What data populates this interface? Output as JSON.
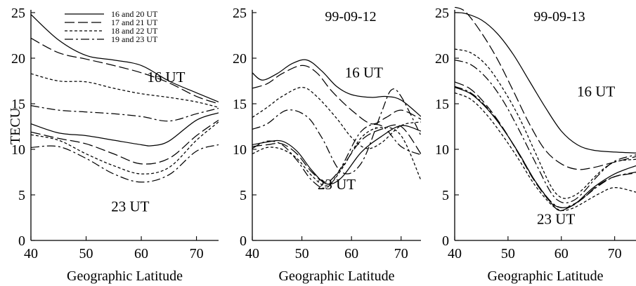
{
  "chart_data": [
    {
      "type": "line",
      "title": "",
      "xlabel": "Geographic Latitude",
      "ylabel": "TECU",
      "xlim": [
        40,
        74
      ],
      "ylim": [
        0,
        25
      ],
      "xticks": [
        40,
        50,
        60,
        70
      ],
      "yticks": [
        0,
        5,
        10,
        15,
        20,
        25
      ],
      "legend": [
        {
          "label": "16 and 20 UT",
          "style": "solid"
        },
        {
          "label": "17 and 21 UT",
          "style": "longdash"
        },
        {
          "label": "18 and 22 UT",
          "style": "shortdash"
        },
        {
          "label": "19 and 23 UT",
          "style": "dashdot"
        }
      ],
      "annotations": [
        {
          "text": "16 UT",
          "x": 64.5,
          "y": 17.4
        },
        {
          "text": "23 UT",
          "x": 58,
          "y": 3.2
        }
      ],
      "series": [
        {
          "style": "solid",
          "x": [
            40,
            45,
            50,
            55,
            60,
            65,
            70,
            74
          ],
          "y": [
            24.8,
            22.0,
            20.3,
            19.8,
            19.2,
            17.5,
            16.2,
            15.2
          ]
        },
        {
          "style": "longdash",
          "x": [
            40,
            45,
            50,
            55,
            60,
            65,
            70,
            74
          ],
          "y": [
            22.2,
            20.6,
            19.9,
            19.2,
            18.4,
            17.3,
            15.8,
            15.0
          ]
        },
        {
          "style": "shortdash",
          "x": [
            40,
            45,
            50,
            55,
            60,
            65,
            70,
            74
          ],
          "y": [
            18.3,
            17.5,
            17.4,
            16.7,
            16.1,
            15.7,
            15.2,
            14.6
          ]
        },
        {
          "style": "dashdot",
          "x": [
            40,
            45,
            50,
            55,
            60,
            65,
            70,
            74
          ],
          "y": [
            14.8,
            14.3,
            14.1,
            13.9,
            13.6,
            13.1,
            13.9,
            14.5
          ]
        },
        {
          "style": "solid",
          "x": [
            40,
            45,
            50,
            55,
            60,
            62,
            65,
            70,
            74
          ],
          "y": [
            12.8,
            11.8,
            11.5,
            11.0,
            10.5,
            10.4,
            10.9,
            13.2,
            14.0
          ]
        },
        {
          "style": "longdash",
          "x": [
            40,
            45,
            50,
            55,
            60,
            65,
            70,
            74
          ],
          "y": [
            11.9,
            11.2,
            10.6,
            9.5,
            8.4,
            9.0,
            11.5,
            13.2
          ]
        },
        {
          "style": "shortdash",
          "x": [
            40,
            45,
            50,
            55,
            60,
            65,
            70,
            74
          ],
          "y": [
            11.6,
            11.0,
            9.5,
            8.2,
            7.3,
            8.0,
            11.0,
            13.0
          ]
        },
        {
          "style": "dashdot",
          "x": [
            40,
            45,
            50,
            55,
            60,
            65,
            70,
            74
          ],
          "y": [
            10.2,
            10.3,
            9.0,
            7.3,
            6.4,
            7.2,
            9.8,
            10.5
          ]
        }
      ]
    },
    {
      "type": "line",
      "title": "99-09-12",
      "xlabel": "Geographic Latitude",
      "ylabel": "",
      "xlim": [
        40,
        74
      ],
      "ylim": [
        0,
        25
      ],
      "xticks": [
        40,
        50,
        60,
        70
      ],
      "yticks": [
        0,
        5,
        10,
        15,
        20,
        25
      ],
      "annotations": [
        {
          "text": "16 UT",
          "x": 62.5,
          "y": 17.9
        },
        {
          "text": "23 UT",
          "x": 57,
          "y": 5.6
        }
      ],
      "series": [
        {
          "style": "solid",
          "x": [
            40,
            42,
            45,
            48,
            51,
            54,
            57,
            60,
            64,
            67,
            70,
            74
          ],
          "y": [
            18.4,
            17.6,
            18.3,
            19.4,
            19.8,
            18.6,
            16.9,
            16.0,
            15.7,
            15.8,
            15.4,
            13.6
          ]
        },
        {
          "style": "longdash",
          "x": [
            40,
            43,
            46,
            50,
            53,
            56,
            60,
            64,
            67,
            70,
            74
          ],
          "y": [
            16.7,
            17.2,
            18.3,
            19.2,
            18.4,
            16.4,
            14.3,
            12.8,
            13.5,
            14.3,
            13.3
          ]
        },
        {
          "style": "shortdash",
          "x": [
            40,
            43,
            46,
            50,
            53,
            57,
            60,
            63,
            66,
            70,
            74
          ],
          "y": [
            13.5,
            14.6,
            15.8,
            16.8,
            15.8,
            13.4,
            11.3,
            10.1,
            10.7,
            12.6,
            13.0
          ]
        },
        {
          "style": "dashdot",
          "x": [
            40,
            43,
            47,
            51,
            54,
            58,
            62,
            66,
            68,
            70,
            74
          ],
          "y": [
            12.2,
            12.8,
            14.3,
            13.6,
            11.3,
            7.5,
            8.5,
            14.0,
            16.5,
            15.8,
            11.5
          ]
        },
        {
          "style": "solid",
          "x": [
            40,
            43,
            46,
            49,
            52,
            55,
            58,
            62,
            66,
            70,
            74
          ],
          "y": [
            10.5,
            10.8,
            10.9,
            9.8,
            7.7,
            6.2,
            6.9,
            9.7,
            11.4,
            12.6,
            12.0
          ]
        },
        {
          "style": "longdash",
          "x": [
            40,
            43,
            46,
            49,
            52,
            55,
            58,
            62,
            66,
            70,
            74
          ],
          "y": [
            10.3,
            10.5,
            10.6,
            9.5,
            7.5,
            6.4,
            8.0,
            11.0,
            12.2,
            12.5,
            9.5
          ]
        },
        {
          "style": "shortdash",
          "x": [
            40,
            43,
            46,
            49,
            52,
            55,
            58,
            62,
            66,
            70,
            74
          ],
          "y": [
            9.5,
            10.2,
            10.0,
            9.0,
            7.1,
            6.0,
            7.8,
            11.3,
            12.4,
            11.5,
            6.6
          ]
        },
        {
          "style": "dashdot",
          "x": [
            40,
            43,
            46,
            49,
            52,
            55,
            58,
            62,
            66,
            70,
            74
          ],
          "y": [
            10.1,
            10.9,
            10.5,
            8.8,
            6.6,
            5.8,
            8.1,
            12.0,
            12.6,
            10.3,
            9.4
          ]
        }
      ]
    },
    {
      "type": "line",
      "title": "99-09-13",
      "xlabel": "Geographic Latitude",
      "ylabel": "",
      "xlim": [
        40,
        74
      ],
      "ylim": [
        0,
        25
      ],
      "xticks": [
        40,
        50,
        60,
        70
      ],
      "yticks": [
        0,
        5,
        10,
        15,
        20,
        25
      ],
      "annotations": [
        {
          "text": "16 UT",
          "x": 66.5,
          "y": 15.8
        },
        {
          "text": "23 UT",
          "x": 59,
          "y": 1.8
        }
      ],
      "series": [
        {
          "style": "solid",
          "x": [
            40,
            42,
            45,
            48,
            51,
            54,
            57,
            60,
            63,
            66,
            70,
            74
          ],
          "y": [
            25.0,
            24.9,
            24.2,
            22.7,
            20.4,
            17.5,
            14.6,
            12.0,
            10.5,
            9.9,
            9.7,
            9.6
          ]
        },
        {
          "style": "longdash",
          "x": [
            40,
            42,
            45,
            48,
            51,
            54,
            57,
            60,
            63,
            66,
            70,
            74
          ],
          "y": [
            25.6,
            25.1,
            22.8,
            19.9,
            16.4,
            12.8,
            9.9,
            8.4,
            7.8,
            8.0,
            8.6,
            9.2
          ]
        },
        {
          "style": "shortdash",
          "x": [
            40,
            43,
            46,
            49,
            52,
            55,
            58,
            60,
            62,
            64,
            67,
            70,
            74
          ],
          "y": [
            21.0,
            20.6,
            19.2,
            16.7,
            13.6,
            9.8,
            6.0,
            4.7,
            4.8,
            5.6,
            7.4,
            8.6,
            8.9
          ]
        },
        {
          "style": "dashdot",
          "x": [
            40,
            43,
            46,
            49,
            52,
            55,
            58,
            60,
            62,
            64,
            67,
            70,
            74
          ],
          "y": [
            19.8,
            19.3,
            17.8,
            15.4,
            12.2,
            8.7,
            5.3,
            4.2,
            4.3,
            5.2,
            7.2,
            8.7,
            9.4
          ]
        },
        {
          "style": "solid",
          "x": [
            40,
            43,
            46,
            49,
            52,
            55,
            58,
            59.5,
            61,
            63,
            66,
            70,
            74
          ],
          "y": [
            16.8,
            16.1,
            14.5,
            12.3,
            9.6,
            6.6,
            4.2,
            3.3,
            3.5,
            4.2,
            5.8,
            7.3,
            8.2
          ]
        },
        {
          "style": "longdash",
          "x": [
            40,
            43,
            46,
            49,
            52,
            55,
            58,
            60,
            62,
            64,
            67,
            70,
            74
          ],
          "y": [
            17.4,
            16.6,
            14.8,
            12.4,
            9.5,
            6.5,
            4.2,
            3.6,
            3.8,
            4.6,
            6.1,
            7.0,
            7.4
          ]
        },
        {
          "style": "shortdash",
          "x": [
            40,
            43,
            46,
            49,
            52,
            55,
            58,
            60,
            62,
            64,
            67,
            70,
            74
          ],
          "y": [
            16.2,
            15.5,
            13.8,
            11.5,
            8.9,
            6.1,
            4.0,
            3.3,
            3.5,
            4.1,
            5.1,
            5.8,
            5.3
          ]
        },
        {
          "style": "dashdot",
          "x": [
            40,
            43,
            46,
            49,
            52,
            55,
            58,
            60,
            62,
            64,
            67,
            70,
            74
          ],
          "y": [
            16.9,
            16.2,
            14.6,
            12.3,
            9.6,
            6.6,
            4.3,
            3.6,
            3.9,
            4.6,
            6.0,
            7.0,
            7.5
          ]
        }
      ]
    }
  ]
}
